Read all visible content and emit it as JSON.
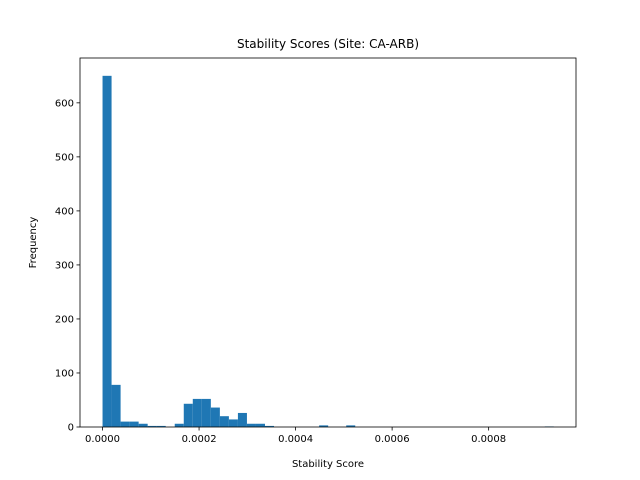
{
  "chart_data": {
    "type": "bar",
    "title": "Stability Scores (Site: CA-ARB)",
    "xlabel": "Stability Score",
    "ylabel": "Frequency",
    "xlim": [
      -4.67e-05,
      0.000981
    ],
    "ylim": [
      0,
      683
    ],
    "grid": false,
    "x_ticks": [
      0,
      0.0002,
      0.0004,
      0.0006,
      0.0008
    ],
    "x_tick_labels": [
      "0.0000",
      "0.0002",
      "0.0004",
      "0.0006",
      "0.0008"
    ],
    "y_ticks": [
      0,
      100,
      200,
      300,
      400,
      500,
      600
    ],
    "y_tick_labels": [
      "0",
      "100",
      "200",
      "300",
      "400",
      "500",
      "600"
    ],
    "bin_start": 0,
    "bin_width": 1.87e-05,
    "bar_color": "#1f77b4",
    "values": [
      650,
      78,
      10,
      10,
      6,
      2,
      2,
      0,
      6,
      43,
      52,
      52,
      36,
      20,
      14,
      26,
      6,
      6,
      2,
      0,
      0,
      0,
      0,
      0,
      3,
      0,
      0,
      3,
      0,
      0,
      0,
      0,
      0,
      0,
      0,
      0,
      0,
      0,
      0,
      0,
      0,
      0,
      0,
      0,
      0,
      0,
      0,
      0,
      0,
      1
    ]
  }
}
